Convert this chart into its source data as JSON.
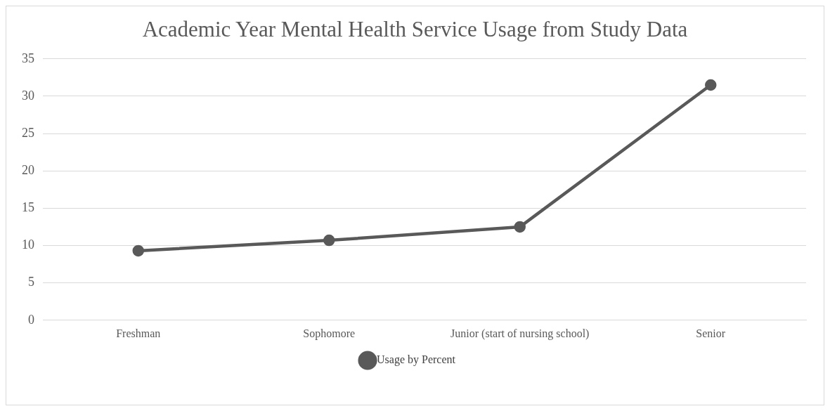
{
  "chart_data": {
    "type": "line",
    "title": "Academic Year Mental Health Service Usage from Study Data",
    "categories": [
      "Freshman",
      "Sophomore",
      "Junior (start of nursing school)",
      "Senior"
    ],
    "series": [
      {
        "name": "Usage by Percent",
        "color": "#595959",
        "values": [
          9.3,
          10.7,
          12.5,
          31.5
        ]
      }
    ],
    "ylim": [
      0,
      35
    ],
    "yticks": [
      0,
      5,
      10,
      15,
      20,
      25,
      30,
      35
    ],
    "grid": "y",
    "legend": "bottom",
    "marker": "circle",
    "line_style": "solid"
  }
}
